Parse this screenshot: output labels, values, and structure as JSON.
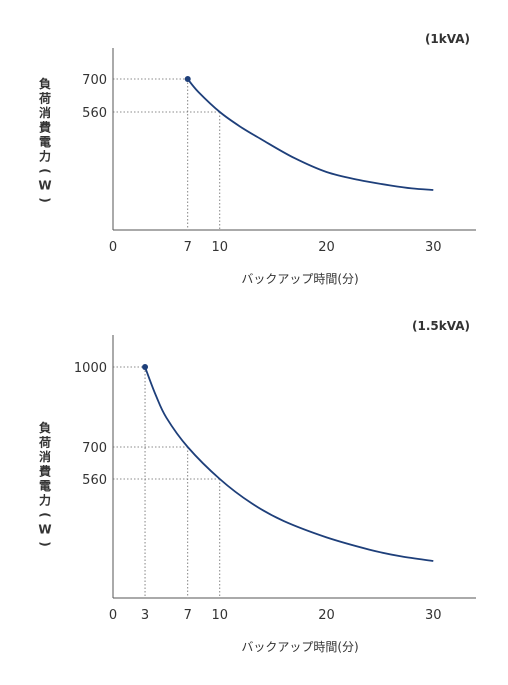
{
  "colors": {
    "curve": "#1e3f7a",
    "axis": "#555555",
    "guide": "#666666",
    "text": "#333333"
  },
  "chart_data": [
    {
      "type": "line",
      "title": "(1kVA)",
      "xlabel": "バックアップ時間(分)",
      "ylabel": "負荷消費電力(W)",
      "x_ticks": [
        "0",
        "7",
        "10",
        "20",
        "30"
      ],
      "y_ticks": [
        "700",
        "560"
      ],
      "xlim": [
        0,
        34
      ],
      "grid": false,
      "guides": [
        {
          "x": 7,
          "y": 700
        },
        {
          "x": 10,
          "y": 560
        }
      ],
      "series": [
        {
          "x": [
            7,
            8,
            10,
            12,
            14,
            17,
            20,
            23,
            26,
            28,
            30
          ],
          "y": [
            700,
            645,
            560,
            495,
            440,
            375,
            325,
            290,
            265,
            252,
            245
          ]
        }
      ]
    },
    {
      "type": "line",
      "title": "(1.5kVA)",
      "xlabel": "バックアップ時間(分)",
      "ylabel": "負荷消費電力(W)",
      "x_ticks": [
        "0",
        "3",
        "7",
        "10",
        "20",
        "30"
      ],
      "y_ticks": [
        "1000",
        "700",
        "560"
      ],
      "xlim": [
        0,
        34
      ],
      "grid": false,
      "guides": [
        {
          "x": 3,
          "y": 1000
        },
        {
          "x": 7,
          "y": 700
        },
        {
          "x": 10,
          "y": 560
        }
      ],
      "series": [
        {
          "x": [
            3,
            4,
            5,
            7,
            10,
            13,
            16,
            20,
            24,
            27,
            30
          ],
          "y": [
            1000,
            895,
            810,
            700,
            560,
            470,
            405,
            345,
            300,
            275,
            258
          ]
        }
      ]
    }
  ]
}
